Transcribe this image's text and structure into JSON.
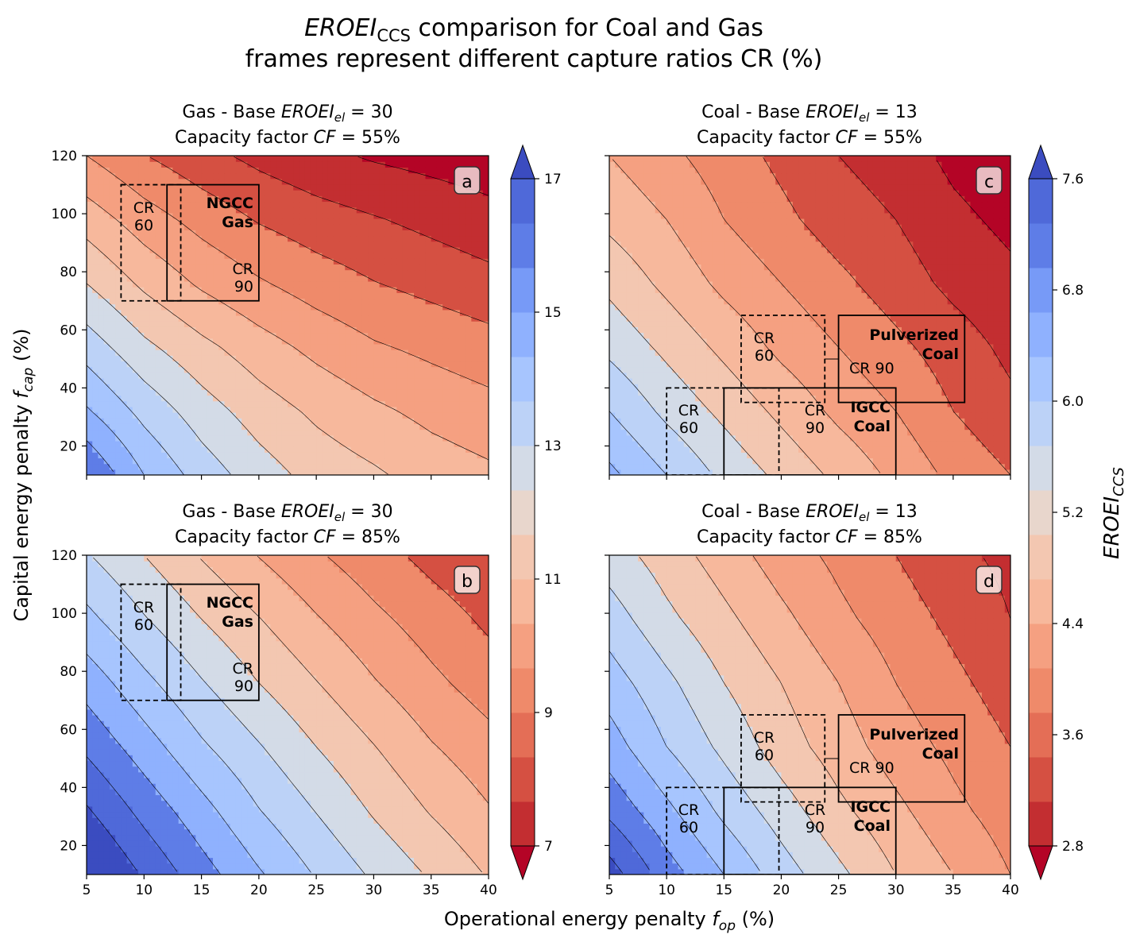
{
  "title": {
    "line1_italic": "EROEI",
    "line1_sub": "CCS",
    "line1_rest": " comparison for Coal and Gas",
    "line2": "frames represent different capture ratios CR (%)"
  },
  "axes": {
    "xlabel_main": "Operational energy penalty ",
    "xlabel_var": "f",
    "xlabel_sub": "op",
    "xlabel_unit": "  (%)",
    "ylabel_main": "Capital energy penalty ",
    "ylabel_var": "f",
    "ylabel_sub": "cap",
    "ylabel_unit": "   (%)",
    "xticks": [
      "5",
      "10",
      "15",
      "20",
      "25",
      "30",
      "35",
      "40"
    ],
    "yticks": [
      "20",
      "40",
      "60",
      "80",
      "100",
      "120"
    ]
  },
  "colorbars": {
    "gas": {
      "ticks": [
        "7",
        "9",
        "11",
        "13",
        "15",
        "17"
      ]
    },
    "coal": {
      "ticks": [
        "2.8",
        "3.6",
        "4.4",
        "5.2",
        "6.0",
        "6.8",
        "7.6"
      ],
      "label_italic": "EROEI",
      "label_sub": "CCS"
    }
  },
  "labels": {
    "cr": "CR",
    "cr60": "60",
    "cr90": "90",
    "cr90_inline": "CR 90",
    "ngcc_1": "NGCC",
    "ngcc_2": "Gas",
    "pulv_1": "Pulverized",
    "pulv_2": "Coal",
    "igcc_1": "IGCC",
    "igcc_2": "Coal"
  },
  "chart_data": [
    {
      "type": "heatmap",
      "panel": "a",
      "fuel": "Gas",
      "title_line1_prefix": "Gas - Base ",
      "title_var": "EROEI",
      "title_sub": "el",
      "title_val": " = 30",
      "title_line2_prefix": "Capacity factor ",
      "title_var2": "CF",
      "title_val2": " = 55%",
      "xlim": [
        5,
        40
      ],
      "ylim": [
        10,
        120
      ],
      "contour_levels": [
        7,
        17,
        12
      ],
      "grid": [
        [
          16.2,
          14.5,
          13.3,
          12.4,
          11.7,
          11.3,
          10.8,
          10.5
        ],
        [
          14.6,
          13.4,
          12.4,
          11.6,
          11.0,
          10.5,
          10.1,
          9.8
        ],
        [
          13.3,
          12.2,
          11.4,
          10.7,
          10.1,
          9.6,
          9.3,
          9.0
        ],
        [
          12.0,
          11.0,
          10.2,
          9.6,
          9.1,
          8.7,
          8.4,
          8.1
        ],
        [
          10.8,
          9.9,
          9.2,
          8.6,
          8.2,
          7.9,
          7.6,
          7.3
        ],
        [
          9.5,
          8.7,
          8.1,
          7.6,
          7.2,
          6.9,
          6.7,
          6.5
        ]
      ],
      "grid_x": [
        5,
        10,
        15,
        20,
        25,
        30,
        35,
        40
      ],
      "grid_y": [
        10,
        32,
        54,
        76,
        98,
        120
      ]
    },
    {
      "type": "heatmap",
      "panel": "b",
      "fuel": "Gas",
      "title_line1_prefix": "Gas - Base ",
      "title_var": "EROEI",
      "title_sub": "el",
      "title_val": " = 30",
      "title_line2_prefix": "Capacity factor ",
      "title_var2": "CF",
      "title_val2": " = 85%",
      "xlim": [
        5,
        40
      ],
      "ylim": [
        10,
        120
      ],
      "contour_levels": [
        7,
        17,
        12
      ],
      "grid": [
        [
          18.2,
          16.9,
          15.7,
          14.6,
          13.6,
          12.7,
          11.9,
          11.1
        ],
        [
          17.1,
          15.9,
          14.8,
          13.7,
          12.8,
          11.9,
          11.1,
          10.4
        ],
        [
          16.0,
          14.9,
          13.8,
          12.9,
          12.0,
          11.2,
          10.4,
          9.8
        ],
        [
          15.0,
          13.9,
          12.9,
          12.0,
          11.2,
          10.4,
          9.7,
          9.1
        ],
        [
          13.9,
          12.9,
          12.0,
          11.2,
          10.4,
          9.7,
          9.1,
          8.5
        ],
        [
          12.9,
          12.0,
          11.1,
          10.3,
          9.6,
          9.0,
          8.4,
          7.9
        ]
      ],
      "grid_x": [
        5,
        10,
        15,
        20,
        25,
        30,
        35,
        40
      ],
      "grid_y": [
        10,
        32,
        54,
        76,
        98,
        120
      ]
    },
    {
      "type": "heatmap",
      "panel": "c",
      "fuel": "Coal",
      "title_line1_prefix": "Coal - Base ",
      "title_var": "EROEI",
      "title_sub": "el",
      "title_val": " = 13",
      "title_line2_prefix": "Capacity factor ",
      "title_var2": "CF",
      "title_val2": " = 55%",
      "xlim": [
        5,
        40
      ],
      "ylim": [
        10,
        120
      ],
      "contour_levels": [
        2.8,
        7.6,
        12
      ],
      "grid": [
        [
          6.5,
          6.0,
          5.5,
          5.1,
          4.7,
          4.3,
          3.9,
          3.6
        ],
        [
          6.0,
          5.5,
          5.1,
          4.7,
          4.3,
          4.0,
          3.6,
          3.3
        ],
        [
          5.5,
          5.1,
          4.7,
          4.3,
          4.0,
          3.7,
          3.4,
          3.1
        ],
        [
          5.1,
          4.7,
          4.3,
          4.0,
          3.7,
          3.4,
          3.1,
          2.9
        ],
        [
          4.7,
          4.4,
          4.0,
          3.7,
          3.4,
          3.2,
          2.9,
          2.7
        ],
        [
          4.4,
          4.1,
          3.8,
          3.5,
          3.2,
          3.0,
          2.7,
          2.5
        ]
      ],
      "grid_x": [
        5,
        10,
        15,
        20,
        25,
        30,
        35,
        40
      ],
      "grid_y": [
        10,
        32,
        54,
        76,
        98,
        120
      ]
    },
    {
      "type": "heatmap",
      "panel": "d",
      "fuel": "Coal",
      "title_line1_prefix": "Coal - Base ",
      "title_var": "EROEI",
      "title_sub": "el",
      "title_val": " = 13",
      "title_line2_prefix": "Capacity factor ",
      "title_var2": "CF",
      "title_val2": " = 85%",
      "xlim": [
        5,
        40
      ],
      "ylim": [
        10,
        120
      ],
      "contour_levels": [
        2.8,
        7.6,
        12
      ],
      "grid": [
        [
          7.8,
          7.0,
          6.4,
          5.8,
          5.3,
          4.8,
          4.4,
          4.0
        ],
        [
          7.1,
          6.5,
          5.9,
          5.4,
          4.9,
          4.5,
          4.1,
          3.8
        ],
        [
          6.6,
          6.0,
          5.5,
          5.0,
          4.6,
          4.2,
          3.9,
          3.6
        ],
        [
          6.2,
          5.7,
          5.2,
          4.8,
          4.4,
          4.0,
          3.7,
          3.4
        ],
        [
          5.8,
          5.3,
          4.9,
          4.5,
          4.1,
          3.8,
          3.5,
          3.2
        ],
        [
          5.4,
          5.0,
          4.6,
          4.2,
          3.9,
          3.6,
          3.3,
          3.1
        ]
      ],
      "grid_x": [
        5,
        10,
        15,
        20,
        25,
        30,
        35,
        40
      ],
      "grid_y": [
        10,
        32,
        54,
        76,
        98,
        120
      ]
    }
  ],
  "frames": {
    "gas": [
      {
        "name": "cr60",
        "style": "dashed",
        "x": [
          8,
          13.2
        ],
        "y": [
          70,
          110
        ]
      },
      {
        "name": "cr90",
        "style": "solid",
        "x": [
          12,
          20
        ],
        "y": [
          70,
          110
        ]
      }
    ],
    "coal": [
      {
        "name": "pulv-cr60",
        "style": "dashed",
        "x": [
          16.5,
          23.8
        ],
        "y": [
          35,
          65
        ]
      },
      {
        "name": "pulv-cr90",
        "style": "solid",
        "x": [
          25,
          36
        ],
        "y": [
          35,
          65
        ]
      },
      {
        "name": "igcc-cr60",
        "style": "dashed",
        "x": [
          10,
          19.8
        ],
        "y": [
          10,
          40
        ]
      },
      {
        "name": "igcc-cr90",
        "style": "solid",
        "x": [
          15,
          30
        ],
        "y": [
          10,
          40
        ]
      }
    ]
  },
  "colors": [
    "#b40426",
    "#c32e31",
    "#d55042",
    "#e46e56",
    "#ef8a6a",
    "#f5a081",
    "#f7b89c",
    "#f3c7b1",
    "#e8d6cc",
    "#d3dbe7",
    "#bcd2f7",
    "#a7c5fe",
    "#8fb1fe",
    "#779af7",
    "#5e7de7",
    "#4f69d9",
    "#3b4cc0"
  ]
}
